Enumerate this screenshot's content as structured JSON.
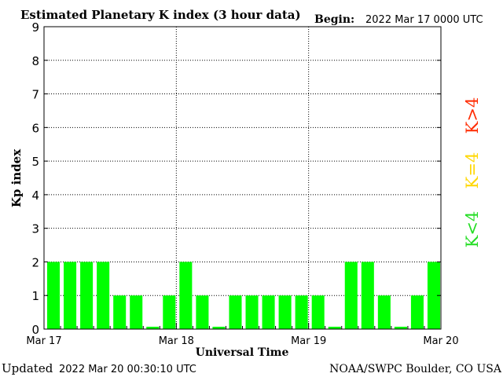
{
  "header": {
    "title": "Estimated Planetary K index (3 hour data)",
    "begin_label": "Begin:",
    "begin_value": "2022 Mar 17 0000 UTC"
  },
  "footer": {
    "updated_label": "Updated",
    "updated_value": "2022 Mar 20 00:30:10 UTC",
    "source": "NOAA/SWPC Boulder, CO USA"
  },
  "legend": {
    "high": {
      "label": "K>4",
      "color": "#ff2a00"
    },
    "equal": {
      "label": "K=4",
      "color": "#ffd700"
    },
    "low": {
      "label": "K<4",
      "color": "#22dd22"
    }
  },
  "chart_data": {
    "type": "bar",
    "title": "Estimated Planetary K index (3 hour data)",
    "xlabel": "Universal Time",
    "ylabel": "Kp index",
    "ylim": [
      0,
      9
    ],
    "yticks": [
      0,
      1,
      2,
      3,
      4,
      5,
      6,
      7,
      8,
      9
    ],
    "xticks": [
      "Mar 17",
      "Mar 18",
      "Mar 19",
      "Mar 20"
    ],
    "grid": true,
    "bar_color": "#00ff00",
    "series": [
      {
        "values": [
          2,
          2,
          2,
          2,
          1,
          1,
          0.07,
          1,
          2,
          1,
          0.07,
          1,
          1,
          1,
          1,
          1,
          1,
          0.07,
          2,
          2,
          1,
          0.07,
          1,
          2
        ]
      }
    ]
  }
}
